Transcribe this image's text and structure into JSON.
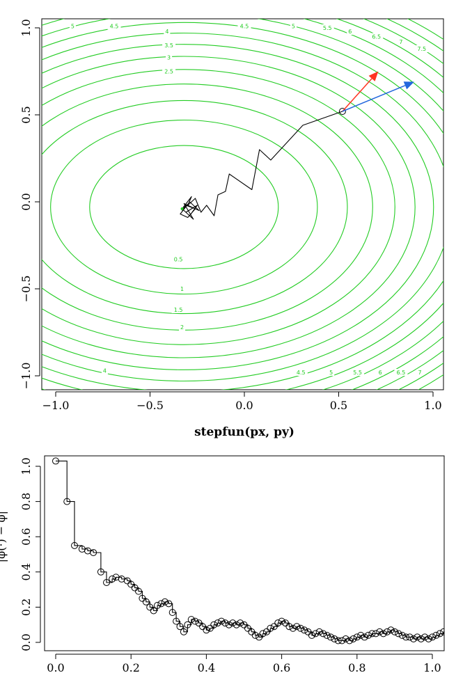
{
  "chart_data": [
    {
      "type": "contour",
      "xlabel": "stepfun(px, py)",
      "ylabel": "",
      "xlim": [
        -1.0,
        1.0
      ],
      "ylim": [
        -1.0,
        1.0
      ],
      "x_ticks": [
        {
          "value": -1.0,
          "label": "−1.0"
        },
        {
          "value": -0.5,
          "label": "−0.5"
        },
        {
          "value": 0.0,
          "label": "0.0"
        },
        {
          "value": 0.5,
          "label": "0.5"
        },
        {
          "value": 1.0,
          "label": "1.0"
        }
      ],
      "y_ticks": [
        {
          "value": -1.0,
          "label": "−1.0"
        },
        {
          "value": -0.5,
          "label": "−0.5"
        },
        {
          "value": 0.0,
          "label": "0.0"
        },
        {
          "value": 0.5,
          "label": "0.5"
        },
        {
          "value": 1.0,
          "label": "1.0"
        }
      ],
      "contour_color": "#22cc22",
      "contour_center": [
        -0.32,
        -0.03
      ],
      "contour_levels": [
        0.5,
        1,
        1.5,
        2,
        2.5,
        3,
        3.5,
        4,
        4.5,
        5,
        5.5,
        6,
        6.5,
        7,
        7.5
      ],
      "contour_labels": [
        {
          "text": "0.5",
          "x": -0.35,
          "y": -0.33
        },
        {
          "text": "1",
          "x": -0.33,
          "y": -0.5
        },
        {
          "text": "1.5",
          "x": -0.35,
          "y": -0.62
        },
        {
          "text": "2",
          "x": -0.33,
          "y": -0.72
        },
        {
          "text": "2.5",
          "x": -0.4,
          "y": 0.75
        },
        {
          "text": "3",
          "x": -0.4,
          "y": 0.83
        },
        {
          "text": "3.5",
          "x": -0.4,
          "y": 0.9
        },
        {
          "text": "4",
          "x": -0.41,
          "y": 0.98
        },
        {
          "text": "4.5",
          "x": -0.69,
          "y": 1.01
        },
        {
          "text": "5",
          "x": -0.91,
          "y": 1.01
        },
        {
          "text": "4.5",
          "x": 0.0,
          "y": 1.01
        },
        {
          "text": "5",
          "x": 0.26,
          "y": 1.01
        },
        {
          "text": "5.5",
          "x": 0.44,
          "y": 1.0
        },
        {
          "text": "6",
          "x": 0.56,
          "y": 0.98
        },
        {
          "text": "6.5",
          "x": 0.7,
          "y": 0.95
        },
        {
          "text": "7",
          "x": 0.83,
          "y": 0.92
        },
        {
          "text": "7.5",
          "x": 0.94,
          "y": 0.88
        },
        {
          "text": "4",
          "x": -0.74,
          "y": -0.97
        },
        {
          "text": "4.5",
          "x": 0.3,
          "y": -0.98
        },
        {
          "text": "5",
          "x": 0.46,
          "y": -0.98
        },
        {
          "text": "5.5",
          "x": 0.6,
          "y": -0.98
        },
        {
          "text": "6",
          "x": 0.72,
          "y": -0.98
        },
        {
          "text": "6.5",
          "x": 0.83,
          "y": -0.98
        },
        {
          "text": "7",
          "x": 0.93,
          "y": -0.98
        }
      ],
      "path_color": "#000000",
      "path": [
        [
          0.52,
          0.52
        ],
        [
          0.31,
          0.44
        ],
        [
          0.14,
          0.24
        ],
        [
          0.08,
          0.3
        ],
        [
          0.04,
          0.07
        ],
        [
          -0.08,
          0.16
        ],
        [
          -0.1,
          0.06
        ],
        [
          -0.14,
          0.04
        ],
        [
          -0.16,
          -0.08
        ],
        [
          -0.2,
          -0.02
        ],
        [
          -0.23,
          -0.06
        ],
        [
          -0.26,
          0.02
        ],
        [
          -0.3,
          -0.02
        ],
        [
          -0.28,
          0.03
        ],
        [
          -0.33,
          -0.04
        ],
        [
          -0.29,
          -0.08
        ],
        [
          -0.25,
          -0.02
        ],
        [
          -0.31,
          -0.06
        ],
        [
          -0.27,
          -0.1
        ],
        [
          -0.32,
          -0.01
        ],
        [
          -0.24,
          -0.05
        ],
        [
          -0.29,
          0.0
        ],
        [
          -0.34,
          -0.07
        ],
        [
          -0.3,
          -0.09
        ],
        [
          -0.26,
          -0.04
        ],
        [
          -0.31,
          -0.02
        ],
        [
          -0.33,
          -0.05
        ]
      ],
      "path_start_marker": [
        0.52,
        0.52
      ],
      "path_end_marker": [
        -0.33,
        -0.04
      ],
      "arrows": [
        {
          "color": "#ff3322",
          "from": [
            0.52,
            0.52
          ],
          "to": [
            0.71,
            0.75
          ]
        },
        {
          "color": "#2266dd",
          "from": [
            0.52,
            0.52
          ],
          "to": [
            0.9,
            0.69
          ]
        }
      ],
      "grid": false
    },
    {
      "type": "step",
      "xlabel": "",
      "ylabel": "",
      "xlim": [
        -0.04,
        1.04
      ],
      "ylim": [
        -0.03,
        1.06
      ],
      "x_ticks": [
        {
          "value": 0.0,
          "label": "0.0"
        },
        {
          "value": 0.2,
          "label": "0.2"
        },
        {
          "value": 0.4,
          "label": "0.4"
        },
        {
          "value": 0.6,
          "label": "0.6"
        },
        {
          "value": 0.8,
          "label": "0.8"
        },
        {
          "value": 1.0,
          "label": "1.0"
        }
      ],
      "y_ticks": [
        {
          "value": 0.0,
          "label": "0.0"
        },
        {
          "value": 0.2,
          "label": "0.2"
        },
        {
          "value": 0.4,
          "label": "0.4"
        },
        {
          "value": 0.6,
          "label": "0.6"
        },
        {
          "value": 0.8,
          "label": "0.8"
        },
        {
          "value": 1.0,
          "label": "1.0"
        }
      ],
      "ylabel_fragment": "|φ(·) − φ|",
      "color": "#000000",
      "points": [
        [
          0.0,
          1.03
        ],
        [
          0.03,
          0.8
        ],
        [
          0.05,
          0.55
        ],
        [
          0.07,
          0.53
        ],
        [
          0.085,
          0.52
        ],
        [
          0.1,
          0.51
        ],
        [
          0.12,
          0.4
        ],
        [
          0.135,
          0.34
        ],
        [
          0.15,
          0.36
        ],
        [
          0.16,
          0.37
        ],
        [
          0.175,
          0.36
        ],
        [
          0.19,
          0.35
        ],
        [
          0.2,
          0.33
        ],
        [
          0.21,
          0.31
        ],
        [
          0.22,
          0.29
        ],
        [
          0.23,
          0.25
        ],
        [
          0.24,
          0.23
        ],
        [
          0.25,
          0.2
        ],
        [
          0.26,
          0.18
        ],
        [
          0.27,
          0.21
        ],
        [
          0.28,
          0.22
        ],
        [
          0.29,
          0.23
        ],
        [
          0.3,
          0.22
        ],
        [
          0.31,
          0.17
        ],
        [
          0.32,
          0.12
        ],
        [
          0.33,
          0.09
        ],
        [
          0.34,
          0.06
        ],
        [
          0.35,
          0.1
        ],
        [
          0.36,
          0.13
        ],
        [
          0.37,
          0.12
        ],
        [
          0.38,
          0.11
        ],
        [
          0.39,
          0.09
        ],
        [
          0.4,
          0.07
        ],
        [
          0.41,
          0.08
        ],
        [
          0.42,
          0.1
        ],
        [
          0.43,
          0.11
        ],
        [
          0.44,
          0.12
        ],
        [
          0.45,
          0.11
        ],
        [
          0.46,
          0.1
        ],
        [
          0.47,
          0.11
        ],
        [
          0.48,
          0.1
        ],
        [
          0.49,
          0.11
        ],
        [
          0.5,
          0.1
        ],
        [
          0.51,
          0.08
        ],
        [
          0.52,
          0.06
        ],
        [
          0.53,
          0.04
        ],
        [
          0.54,
          0.03
        ],
        [
          0.55,
          0.05
        ],
        [
          0.56,
          0.06
        ],
        [
          0.57,
          0.08
        ],
        [
          0.58,
          0.09
        ],
        [
          0.59,
          0.11
        ],
        [
          0.6,
          0.12
        ],
        [
          0.61,
          0.11
        ],
        [
          0.62,
          0.09
        ],
        [
          0.63,
          0.08
        ],
        [
          0.64,
          0.09
        ],
        [
          0.65,
          0.08
        ],
        [
          0.66,
          0.07
        ],
        [
          0.67,
          0.06
        ],
        [
          0.68,
          0.04
        ],
        [
          0.69,
          0.05
        ],
        [
          0.7,
          0.06
        ],
        [
          0.71,
          0.05
        ],
        [
          0.72,
          0.04
        ],
        [
          0.73,
          0.03
        ],
        [
          0.74,
          0.02
        ],
        [
          0.75,
          0.01
        ],
        [
          0.76,
          0.01
        ],
        [
          0.77,
          0.02
        ],
        [
          0.78,
          0.01
        ],
        [
          0.79,
          0.02
        ],
        [
          0.8,
          0.03
        ],
        [
          0.81,
          0.04
        ],
        [
          0.82,
          0.03
        ],
        [
          0.83,
          0.04
        ],
        [
          0.84,
          0.05
        ],
        [
          0.85,
          0.05
        ],
        [
          0.86,
          0.06
        ],
        [
          0.87,
          0.05
        ],
        [
          0.88,
          0.06
        ],
        [
          0.89,
          0.07
        ],
        [
          0.9,
          0.06
        ],
        [
          0.91,
          0.05
        ],
        [
          0.92,
          0.04
        ],
        [
          0.93,
          0.03
        ],
        [
          0.94,
          0.03
        ],
        [
          0.95,
          0.02
        ],
        [
          0.96,
          0.03
        ],
        [
          0.97,
          0.02
        ],
        [
          0.98,
          0.03
        ],
        [
          0.99,
          0.02
        ],
        [
          1.0,
          0.03
        ],
        [
          1.01,
          0.04
        ],
        [
          1.02,
          0.05
        ],
        [
          1.03,
          0.06
        ]
      ],
      "grid": false
    }
  ]
}
